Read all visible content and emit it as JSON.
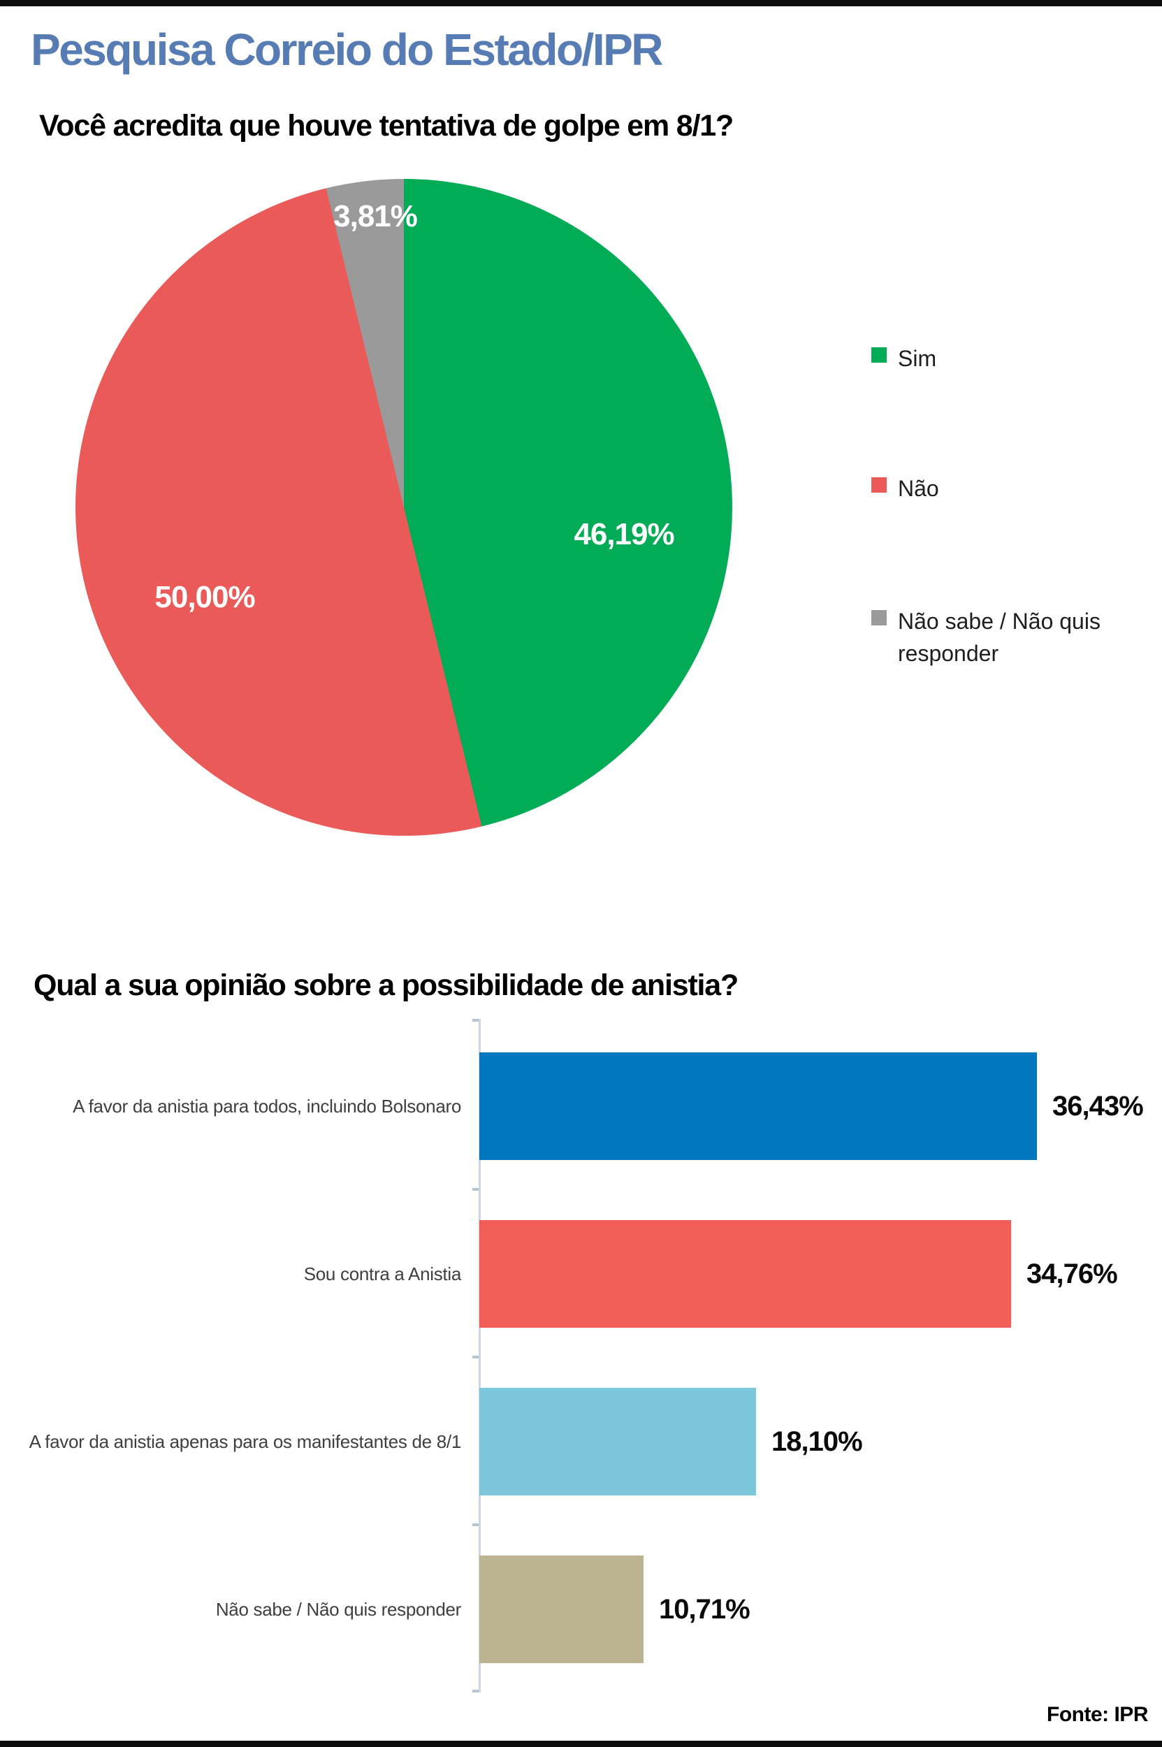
{
  "header": {
    "title": "Pesquisa Correio do Estado/IPR",
    "title_color": "#567cb3"
  },
  "footer": {
    "source": "Fonte: IPR"
  },
  "chart_data": [
    {
      "type": "pie",
      "title": "Você acredita que houve tentativa de golpe em 8/1?",
      "categories": [
        "Sim",
        "Não",
        "Não sabe / Não quis responder"
      ],
      "values": [
        46.19,
        50.0,
        3.81
      ],
      "value_labels": [
        "46,19%",
        "50,00%",
        "3,81%"
      ],
      "colors": [
        "#02ab55",
        "#ea5a59",
        "#9b9a9a"
      ],
      "start_angle_deg": 0,
      "direction": "clockwise",
      "legend_position": "right",
      "label_color": "#ffffff"
    },
    {
      "type": "bar",
      "orientation": "horizontal",
      "title": "Qual a sua opinião sobre a possibilidade de anistia?",
      "categories": [
        "A favor da anistia para todos, incluindo Bolsonaro",
        "Sou contra a Anistia",
        "A favor da anistia apenas para os manifestantes de 8/1",
        "Não sabe / Não quis responder"
      ],
      "values": [
        36.43,
        34.76,
        18.1,
        10.71
      ],
      "value_labels": [
        "36,43%",
        "34,76%",
        "18,10%",
        "10,71%"
      ],
      "colors": [
        "#0277bf",
        "#f15e57",
        "#7dc7dc",
        "#bcb491"
      ],
      "xlim": [
        0,
        40
      ],
      "grid": false,
      "axis_color": "#ccd7e1"
    }
  ]
}
